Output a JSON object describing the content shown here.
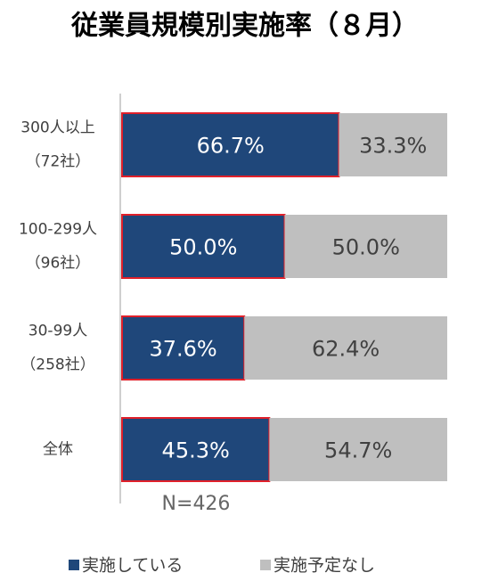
{
  "chart_data": {
    "type": "stacked_bar_horizontal",
    "title": "従業員規模別実施率（８月）",
    "categories": [
      [
        "300人以上",
        "（72社）"
      ],
      [
        "100-299人",
        "（96社）"
      ],
      [
        "30-99人",
        "（258社）"
      ],
      [
        "全体"
      ]
    ],
    "series": [
      {
        "name": "実施している",
        "color": "#1f477a",
        "border": "#e0202a",
        "label_color": "#ffffff",
        "values": [
          66.7,
          50.0,
          37.6,
          45.3
        ],
        "value_labels": [
          "66.7%",
          "50.0%",
          "37.6%",
          "45.3%"
        ]
      },
      {
        "name": "実施予定なし",
        "color": "#bfbfbf",
        "label_color": "#404040",
        "values": [
          33.3,
          50.0,
          62.4,
          54.7
        ],
        "value_labels": [
          "33.3%",
          "50.0%",
          "62.4%",
          "54.7%"
        ]
      }
    ],
    "xlim": [
      0,
      100
    ],
    "annotation": "N=426"
  }
}
